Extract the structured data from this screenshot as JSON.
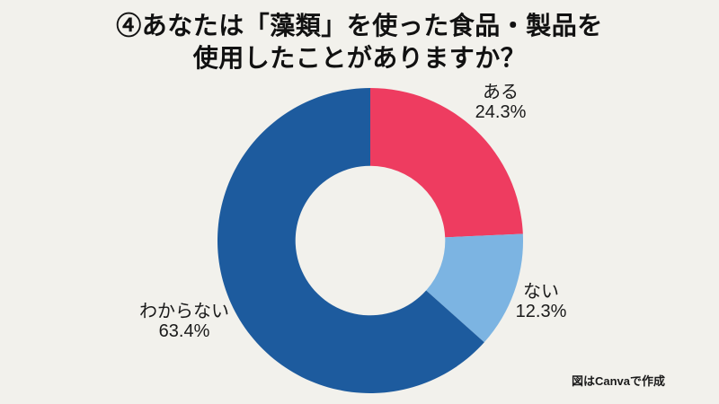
{
  "title": {
    "line1": "④あなたは「藻類」を使った食品・製品を",
    "line2": "使用したことがありますか？"
  },
  "attribution": "図はCanvaで作成",
  "colors": {
    "background": "#f2f1ec",
    "text": "#1a1a1a",
    "slice_aru": "#ee3c60",
    "slice_nai": "#7cb4e2",
    "slice_wakaranai": "#1d5b9e"
  },
  "chart_data": {
    "type": "pie",
    "subtype": "donut",
    "title": "④あなたは「藻類」を使った食品・製品を使用したことがありますか？",
    "start_angle_deg": 0,
    "direction": "clockwise",
    "inner_radius_ratio": 0.49,
    "legend": "none",
    "labels_position": "outside",
    "slices": [
      {
        "label": "ある",
        "value": 24.3,
        "pct_text": "24.3%",
        "color": "#ee3c60"
      },
      {
        "label": "ない",
        "value": 12.3,
        "pct_text": "12.3%",
        "color": "#7cb4e2"
      },
      {
        "label": "わからない",
        "value": 63.4,
        "pct_text": "63.4%",
        "color": "#1d5b9e"
      }
    ]
  }
}
